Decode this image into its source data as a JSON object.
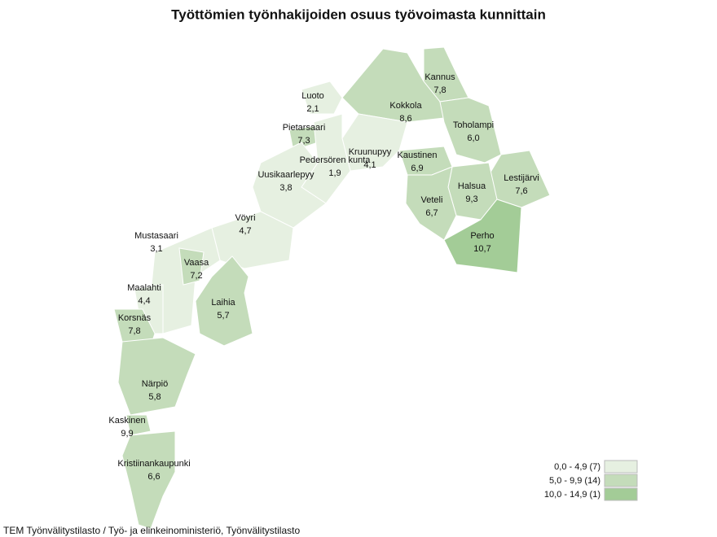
{
  "title": "Työttömien työnhakijoiden osuus työvoimasta kunnittain",
  "regions": [
    {
      "name": "Kannus",
      "value": 7.8,
      "value_label": "7,8"
    },
    {
      "name": "Kokkola",
      "value": 8.6,
      "value_label": "8,6"
    },
    {
      "name": "Luoto",
      "value": 2.1,
      "value_label": "2,1"
    },
    {
      "name": "Toholampi",
      "value": 6.0,
      "value_label": "6,0"
    },
    {
      "name": "Kruunupyy",
      "value": 4.1,
      "value_label": "4,1"
    },
    {
      "name": "Pietarsaari",
      "value": 7.3,
      "value_label": "7,3"
    },
    {
      "name": "Pedersören kunta",
      "value": 1.9,
      "value_label": "1,9"
    },
    {
      "name": "Uusikaarlepyy",
      "value": 3.8,
      "value_label": "3,8"
    },
    {
      "name": "Kaustinen",
      "value": 6.9,
      "value_label": "6,9"
    },
    {
      "name": "Lestijärvi",
      "value": 7.6,
      "value_label": "7,6"
    },
    {
      "name": "Halsua",
      "value": 9.3,
      "value_label": "9,3"
    },
    {
      "name": "Veteli",
      "value": 6.7,
      "value_label": "6,7"
    },
    {
      "name": "Perho",
      "value": 10.7,
      "value_label": "10,7"
    },
    {
      "name": "Vöyri",
      "value": 4.7,
      "value_label": "4,7"
    },
    {
      "name": "Mustasaari",
      "value": 3.1,
      "value_label": "3,1"
    },
    {
      "name": "Vaasa",
      "value": 7.2,
      "value_label": "7,2"
    },
    {
      "name": "Laihia",
      "value": 5.7,
      "value_label": "5,7"
    },
    {
      "name": "Maalahti",
      "value": 4.4,
      "value_label": "4,4"
    },
    {
      "name": "Korsnäs",
      "value": 7.8,
      "value_label": "7,8"
    },
    {
      "name": "Närpiö",
      "value": 5.8,
      "value_label": "5,8"
    },
    {
      "name": "Kaskinen",
      "value": 9.9,
      "value_label": "9,9"
    },
    {
      "name": "Kristiinankaupunki",
      "value": 6.6,
      "value_label": "6,6"
    }
  ],
  "legend": [
    {
      "label": "0,0 - 4,9 (7)",
      "from": 0.0,
      "to": 4.9,
      "count": 7,
      "color": "#e6f0e1"
    },
    {
      "label": "5,0 - 9,9 (14)",
      "from": 5.0,
      "to": 9.9,
      "count": 14,
      "color": "#c4dcba"
    },
    {
      "label": "10,0 - 14,9 (1)",
      "from": 10.0,
      "to": 14.9,
      "count": 1,
      "color": "#a3cc97"
    }
  ],
  "source": "TEM Työnvälitystilasto / Työ- ja elinkeinoministeriö, Työnvälitystilasto"
}
